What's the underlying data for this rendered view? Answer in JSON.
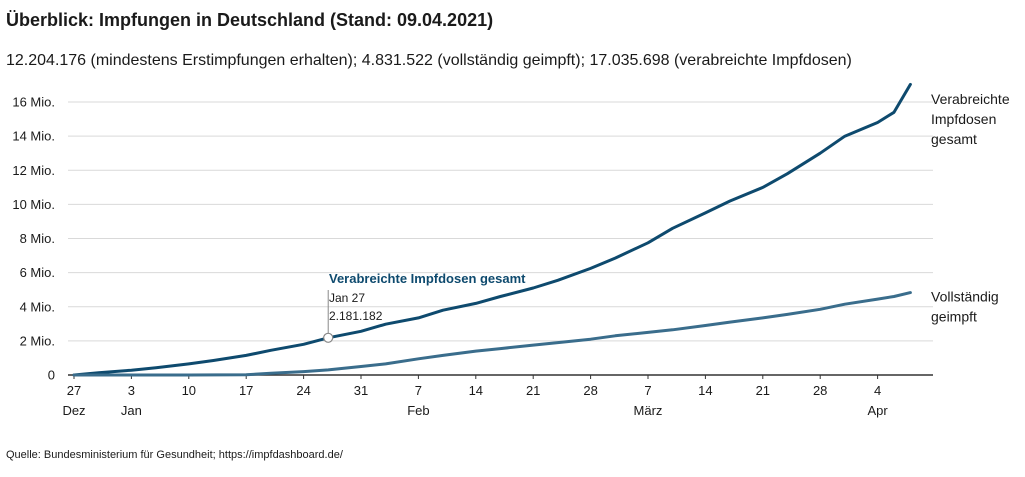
{
  "title": "Überblick: Impfungen in Deutschland (Stand: 09.04.2021)",
  "subtitle": "12.204.176 (mindestens Erstimpfungen erhalten); 4.831.522 (vollständig geimpft); 17.035.698 (verabreichte Impfdosen)",
  "source": "Quelle: Bundesministerium für Gesundheit; https://impfdashboard.de/",
  "colors": {
    "series_total": "#0e4a6e",
    "series_full": "#3a6d8c",
    "grid": "#d9d9d9",
    "axis": "#333333"
  },
  "chart_data": {
    "type": "line",
    "ylim": [
      0,
      17000000
    ],
    "y_ticks": [
      {
        "value": 0,
        "label": "0"
      },
      {
        "value": 2000000,
        "label": "2 Mio."
      },
      {
        "value": 4000000,
        "label": "4 Mio."
      },
      {
        "value": 6000000,
        "label": "6 Mio."
      },
      {
        "value": 8000000,
        "label": "8 Mio."
      },
      {
        "value": 10000000,
        "label": "10 Mio."
      },
      {
        "value": 12000000,
        "label": "12 Mio."
      },
      {
        "value": 14000000,
        "label": "14 Mio."
      },
      {
        "value": 16000000,
        "label": "16 Mio."
      }
    ],
    "xlim": [
      "2020-12-27",
      "2021-04-09"
    ],
    "x_ticks": [
      {
        "date": "2020-12-27",
        "label": "27",
        "sublabel": "Dez"
      },
      {
        "date": "2021-01-03",
        "label": "3",
        "sublabel": "Jan"
      },
      {
        "date": "2021-01-10",
        "label": "10",
        "sublabel": ""
      },
      {
        "date": "2021-01-17",
        "label": "17",
        "sublabel": ""
      },
      {
        "date": "2021-01-24",
        "label": "24",
        "sublabel": ""
      },
      {
        "date": "2021-01-31",
        "label": "31",
        "sublabel": ""
      },
      {
        "date": "2021-02-07",
        "label": "7",
        "sublabel": "Feb"
      },
      {
        "date": "2021-02-14",
        "label": "14",
        "sublabel": ""
      },
      {
        "date": "2021-02-21",
        "label": "21",
        "sublabel": ""
      },
      {
        "date": "2021-02-28",
        "label": "28",
        "sublabel": ""
      },
      {
        "date": "2021-03-07",
        "label": "7",
        "sublabel": "März"
      },
      {
        "date": "2021-03-14",
        "label": "14",
        "sublabel": ""
      },
      {
        "date": "2021-03-21",
        "label": "21",
        "sublabel": ""
      },
      {
        "date": "2021-03-28",
        "label": "28",
        "sublabel": ""
      },
      {
        "date": "2021-04-04",
        "label": "4",
        "sublabel": "Apr"
      }
    ],
    "series": [
      {
        "name": "Verabreichte Impfdosen gesamt",
        "label_lines": [
          "Verabreichte",
          "Impfdosen",
          "gesamt"
        ],
        "points": [
          [
            "2020-12-27",
            0
          ],
          [
            "2020-12-30",
            130000
          ],
          [
            "2021-01-03",
            280000
          ],
          [
            "2021-01-06",
            430000
          ],
          [
            "2021-01-10",
            650000
          ],
          [
            "2021-01-13",
            850000
          ],
          [
            "2021-01-17",
            1150000
          ],
          [
            "2021-01-20",
            1450000
          ],
          [
            "2021-01-24",
            1800000
          ],
          [
            "2021-01-27",
            2181182
          ],
          [
            "2021-01-31",
            2560000
          ],
          [
            "2021-02-03",
            2980000
          ],
          [
            "2021-02-07",
            3350000
          ],
          [
            "2021-02-10",
            3800000
          ],
          [
            "2021-02-14",
            4200000
          ],
          [
            "2021-02-17",
            4600000
          ],
          [
            "2021-02-21",
            5100000
          ],
          [
            "2021-02-24",
            5550000
          ],
          [
            "2021-02-28",
            6250000
          ],
          [
            "2021-03-03",
            6850000
          ],
          [
            "2021-03-07",
            7750000
          ],
          [
            "2021-03-10",
            8600000
          ],
          [
            "2021-03-14",
            9500000
          ],
          [
            "2021-03-17",
            10200000
          ],
          [
            "2021-03-21",
            11000000
          ],
          [
            "2021-03-24",
            11800000
          ],
          [
            "2021-03-28",
            13000000
          ],
          [
            "2021-03-31",
            14000000
          ],
          [
            "2021-04-04",
            14800000
          ],
          [
            "2021-04-06",
            15400000
          ],
          [
            "2021-04-08",
            17035698
          ]
        ]
      },
      {
        "name": "Vollständig geimpft",
        "label_lines": [
          "Vollständig",
          "geimpft"
        ],
        "points": [
          [
            "2020-12-27",
            0
          ],
          [
            "2021-01-03",
            0
          ],
          [
            "2021-01-10",
            0
          ],
          [
            "2021-01-17",
            20000
          ],
          [
            "2021-01-20",
            100000
          ],
          [
            "2021-01-24",
            200000
          ],
          [
            "2021-01-27",
            300000
          ],
          [
            "2021-01-31",
            500000
          ],
          [
            "2021-02-03",
            650000
          ],
          [
            "2021-02-07",
            950000
          ],
          [
            "2021-02-10",
            1150000
          ],
          [
            "2021-02-14",
            1400000
          ],
          [
            "2021-02-17",
            1550000
          ],
          [
            "2021-02-21",
            1750000
          ],
          [
            "2021-02-24",
            1900000
          ],
          [
            "2021-02-28",
            2100000
          ],
          [
            "2021-03-03",
            2300000
          ],
          [
            "2021-03-07",
            2500000
          ],
          [
            "2021-03-10",
            2650000
          ],
          [
            "2021-03-14",
            2900000
          ],
          [
            "2021-03-17",
            3100000
          ],
          [
            "2021-03-21",
            3350000
          ],
          [
            "2021-03-24",
            3550000
          ],
          [
            "2021-03-28",
            3850000
          ],
          [
            "2021-03-31",
            4150000
          ],
          [
            "2021-04-04",
            4450000
          ],
          [
            "2021-04-06",
            4600000
          ],
          [
            "2021-04-08",
            4831522
          ]
        ]
      }
    ],
    "annotation": {
      "title": "Verabreichte Impfdosen gesamt",
      "date": "2021-01-27",
      "value": 2181182,
      "date_label": "Jan 27",
      "value_label": "2.181.182"
    }
  }
}
